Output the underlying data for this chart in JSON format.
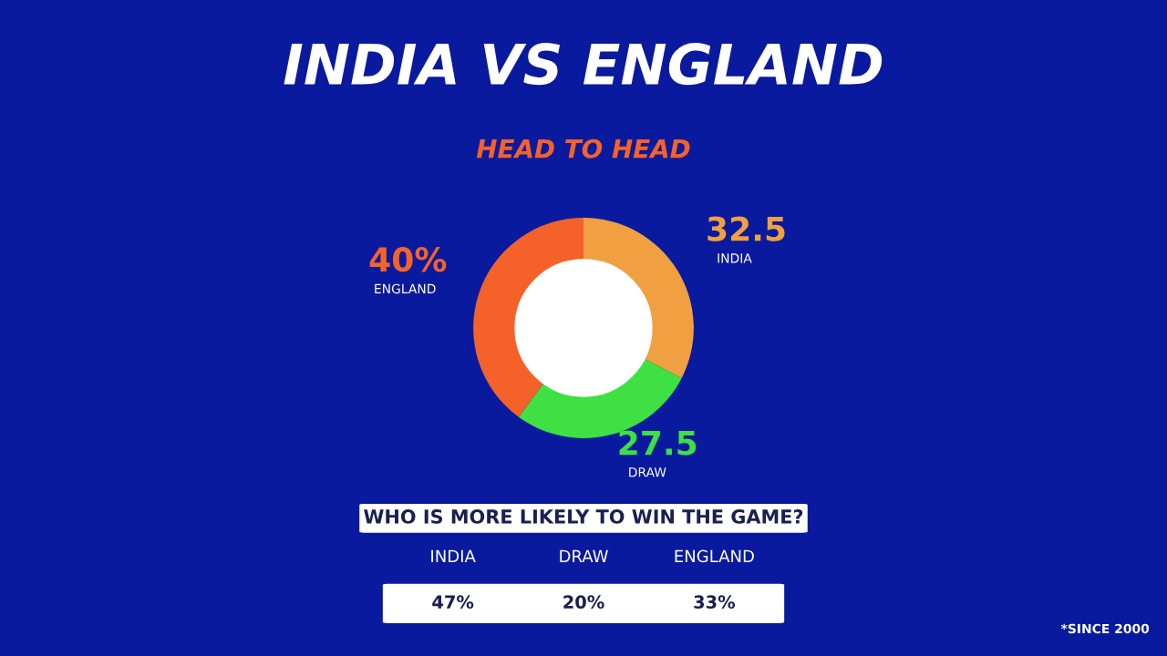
{
  "chart_data": [
    {
      "type": "donut",
      "title": "INDIA VS ENGLAND",
      "subtitle": "HEAD TO HEAD",
      "categories": [
        "INDIA",
        "DRAW",
        "ENGLAND"
      ],
      "values": [
        32.5,
        27.5,
        40
      ],
      "colors": [
        "#f0a040",
        "#3ee043",
        "#f4622a"
      ],
      "value_labels": [
        "32.5",
        "27.5",
        "40%"
      ],
      "annotations": [
        "*SINCE 2000"
      ]
    },
    {
      "type": "other",
      "title": "WHO IS MORE LIKELY TO WIN THE GAME?",
      "categories": [
        "INDIA",
        "DRAW",
        "ENGLAND"
      ],
      "value_labels": [
        "47%",
        "20%",
        "33%"
      ]
    }
  ]
}
